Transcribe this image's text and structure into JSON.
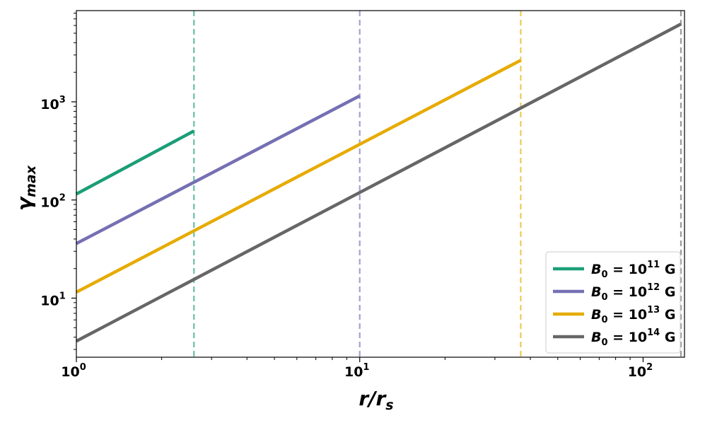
{
  "chart_data": {
    "type": "line",
    "xlabel": "r/r",
    "xlabel_subscript": "s",
    "ylabel": "γ",
    "ylabel_subscript": "max",
    "xscale": "log",
    "yscale": "log",
    "xlim": [
      1,
      140
    ],
    "ylim": [
      2.5,
      8500
    ],
    "x_ticks": [
      {
        "value": 1,
        "base": "10",
        "exp": "0"
      },
      {
        "value": 10,
        "base": "10",
        "exp": "1"
      },
      {
        "value": 100,
        "base": "10",
        "exp": "2"
      }
    ],
    "y_ticks": [
      {
        "value": 10,
        "base": "10",
        "exp": "1"
      },
      {
        "value": 100,
        "base": "10",
        "exp": "2"
      },
      {
        "value": 1000,
        "base": "10",
        "exp": "3"
      }
    ],
    "grid": false,
    "legend_position": "bottom-right",
    "series": [
      {
        "name_prefix": "B",
        "name_sub": "0",
        "name_mid": " = 10",
        "name_exp": "11",
        "name_unit": " G",
        "color": "#1b9e77",
        "x": [
          1,
          2.6
        ],
        "y": [
          115,
          505
        ],
        "vline_x": 2.6
      },
      {
        "name_prefix": "B",
        "name_sub": "0",
        "name_mid": " = 10",
        "name_exp": "12",
        "name_unit": " G",
        "color": "#7570b3",
        "x": [
          1,
          10
        ],
        "y": [
          36,
          1150
        ],
        "vline_x": 10
      },
      {
        "name_prefix": "B",
        "name_sub": "0",
        "name_mid": " = 10",
        "name_exp": "13",
        "name_unit": " G",
        "color": "#e6ab02",
        "x": [
          1,
          37
        ],
        "y": [
          11.5,
          2650
        ],
        "vline_x": 37
      },
      {
        "name_prefix": "B",
        "name_sub": "0",
        "name_mid": " = 10",
        "name_exp": "14",
        "name_unit": " G",
        "color": "#666666",
        "x": [
          1,
          136
        ],
        "y": [
          3.65,
          6200
        ],
        "vline_x": 136
      }
    ]
  }
}
